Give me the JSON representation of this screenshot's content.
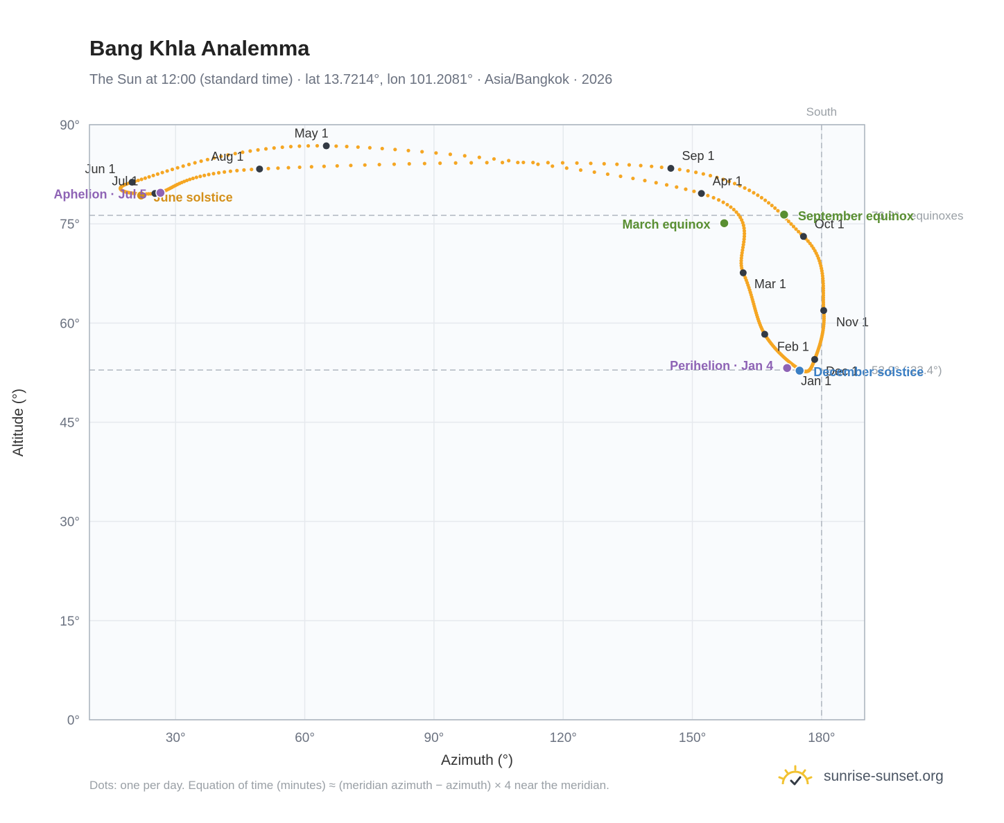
{
  "header": {
    "title": "Bang Khla Analemma",
    "subtitle": "The Sun at 12:00 (standard time) · lat 13.7214°, lon 101.2081° · Asia/Bangkok · 2026"
  },
  "footer": {
    "note": "Dots: one per day. Equation of time (minutes) ≈ (meridian azimuth − azimuth) × 4 near the meridian.",
    "brand": "sunrise-sunset.org",
    "brand_icon": "sun-logo-icon"
  },
  "colors": {
    "curve": "#f5a623",
    "month_marker": "#333a44",
    "equinox": "#5a8f32",
    "june_solstice": "#d4901a",
    "december_solstice": "#3b7fc4",
    "apsis": "#8e63b5",
    "grid": "#e6e9ee",
    "plot_bg": "#f9fbfd",
    "frame": "#a8b1bc",
    "reference_line": "#b0b7c0"
  },
  "chart_data": {
    "type": "scatter",
    "xlabel": "Azimuth (°)",
    "ylabel": "Altitude (°)",
    "xlim": [
      10,
      190
    ],
    "ylim": [
      0,
      90
    ],
    "xticks": [
      30,
      60,
      90,
      120,
      150,
      180
    ],
    "yticks": [
      0,
      15,
      30,
      45,
      60,
      75,
      90
    ],
    "tick_suffix": "°",
    "grid": true,
    "month_markers": [
      {
        "label": "Jan 1",
        "az": 175.2,
        "alt": 52.9
      },
      {
        "label": "Feb 1",
        "az": 166.8,
        "alt": 58.3
      },
      {
        "label": "Mar 1",
        "az": 161.8,
        "alt": 67.6
      },
      {
        "label": "Apr 1",
        "az": 152.1,
        "alt": 79.6
      },
      {
        "label": "May 1",
        "az": 65.0,
        "alt": 86.8
      },
      {
        "label": "Jun 1",
        "az": 19.9,
        "alt": 81.3
      },
      {
        "label": "Jul 1",
        "az": 25.2,
        "alt": 79.6
      },
      {
        "label": "Aug 1",
        "az": 49.5,
        "alt": 83.3
      },
      {
        "label": "Sep 1",
        "az": 145.0,
        "alt": 83.4
      },
      {
        "label": "Oct 1",
        "az": 175.8,
        "alt": 73.1
      },
      {
        "label": "Nov 1",
        "az": 180.5,
        "alt": 61.9
      },
      {
        "label": "Dec 1",
        "az": 178.4,
        "alt": 54.5
      }
    ],
    "events": [
      {
        "label": "March equinox",
        "az": 157.4,
        "alt": 75.1,
        "kind": "equinox"
      },
      {
        "label": "June solstice",
        "az": 22.0,
        "alt": 79.3,
        "kind": "june_solstice"
      },
      {
        "label": "September equinox",
        "az": 171.3,
        "alt": 76.4,
        "kind": "equinox"
      },
      {
        "label": "December solstice",
        "az": 174.9,
        "alt": 52.8,
        "kind": "december_solstice"
      },
      {
        "label": "Perihelion · Jan 4",
        "az": 172.0,
        "alt": 53.2,
        "kind": "apsis"
      },
      {
        "label": "Aphelion · Jul 5",
        "az": 26.5,
        "alt": 79.7,
        "kind": "apsis"
      }
    ],
    "reference_lines": [
      {
        "axis": "y",
        "value": 76.3,
        "label": "76.3° · equinoxes"
      },
      {
        "axis": "y",
        "value": 52.9,
        "label": "52.9° (-23.4°)"
      },
      {
        "axis": "x",
        "value": 180,
        "label": "South"
      }
    ]
  }
}
